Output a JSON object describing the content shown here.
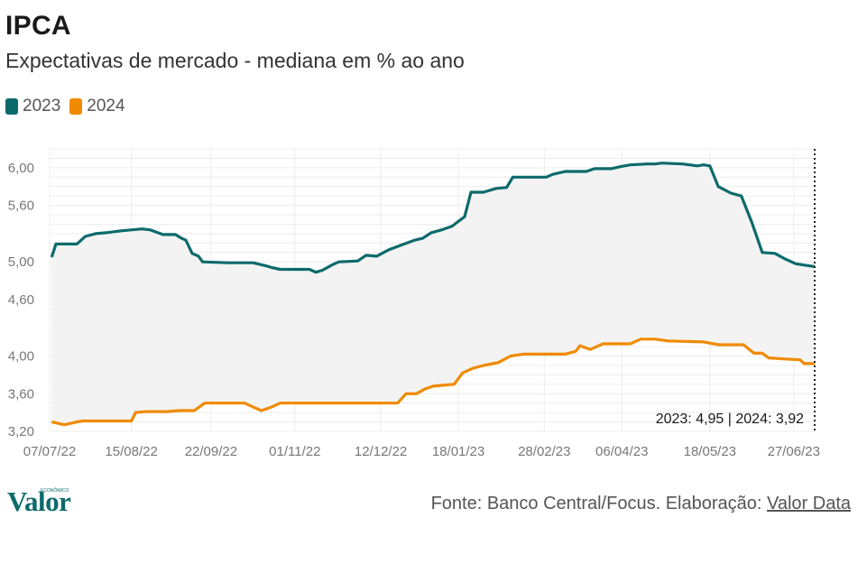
{
  "header": {
    "title": "IPCA",
    "subtitle": "Expectativas de mercado - mediana em % ao ano"
  },
  "legend": [
    {
      "label": "2023",
      "color": "#0d6a6b"
    },
    {
      "label": "2024",
      "color": "#f08a00"
    }
  ],
  "chart_data": {
    "type": "line",
    "x_type": "date",
    "x_range": [
      "2022-07-07",
      "2023-07-07"
    ],
    "ylim": [
      3.2,
      6.2
    ],
    "y_ticks": [
      "6,00",
      "5,60",
      "5,00",
      "4,60",
      "4,00",
      "3,60",
      "3,20"
    ],
    "x_ticks": [
      "07/07/22",
      "15/08/22",
      "22/09/22",
      "01/11/22",
      "12/12/22",
      "18/01/23",
      "28/02/23",
      "06/04/23",
      "18/05/23",
      "27/06/23"
    ],
    "grid": true,
    "legend_position": "top-left",
    "annotation": "2023: 4,95 | 2024: 3,92",
    "series": [
      {
        "name": "2023",
        "color": "#0d6a6b",
        "points": [
          [
            "2022-07-08",
            5.05
          ],
          [
            "2022-07-10",
            5.19
          ],
          [
            "2022-07-20",
            5.19
          ],
          [
            "2022-07-24",
            5.27
          ],
          [
            "2022-07-29",
            5.3
          ],
          [
            "2022-08-03",
            5.31
          ],
          [
            "2022-08-10",
            5.33
          ],
          [
            "2022-08-20",
            5.35
          ],
          [
            "2022-08-24",
            5.34
          ],
          [
            "2022-08-30",
            5.29
          ],
          [
            "2022-09-05",
            5.29
          ],
          [
            "2022-09-08",
            5.25
          ],
          [
            "2022-09-10",
            5.23
          ],
          [
            "2022-09-13",
            5.09
          ],
          [
            "2022-09-16",
            5.06
          ],
          [
            "2022-09-18",
            5.0
          ],
          [
            "2022-09-30",
            4.99
          ],
          [
            "2022-10-12",
            4.99
          ],
          [
            "2022-10-18",
            4.96
          ],
          [
            "2022-10-21",
            4.94
          ],
          [
            "2022-10-25",
            4.92
          ],
          [
            "2022-11-08",
            4.92
          ],
          [
            "2022-11-11",
            4.89
          ],
          [
            "2022-11-14",
            4.91
          ],
          [
            "2022-11-19",
            4.97
          ],
          [
            "2022-11-22",
            5.0
          ],
          [
            "2022-12-01",
            5.01
          ],
          [
            "2022-12-05",
            5.07
          ],
          [
            "2022-12-10",
            5.06
          ],
          [
            "2022-12-16",
            5.13
          ],
          [
            "2022-12-22",
            5.18
          ],
          [
            "2022-12-28",
            5.23
          ],
          [
            "2023-01-01",
            5.25
          ],
          [
            "2023-01-05",
            5.31
          ],
          [
            "2023-01-10",
            5.34
          ],
          [
            "2023-01-15",
            5.38
          ],
          [
            "2023-01-21",
            5.48
          ],
          [
            "2023-01-24",
            5.74
          ],
          [
            "2023-01-30",
            5.74
          ],
          [
            "2023-02-05",
            5.78
          ],
          [
            "2023-02-10",
            5.79
          ],
          [
            "2023-02-13",
            5.9
          ],
          [
            "2023-02-20",
            5.9
          ],
          [
            "2023-03-01",
            5.9
          ],
          [
            "2023-03-04",
            5.93
          ],
          [
            "2023-03-10",
            5.96
          ],
          [
            "2023-03-20",
            5.96
          ],
          [
            "2023-03-24",
            5.99
          ],
          [
            "2023-04-01",
            5.99
          ],
          [
            "2023-04-05",
            6.01
          ],
          [
            "2023-04-10",
            6.03
          ],
          [
            "2023-04-18",
            6.04
          ],
          [
            "2023-04-22",
            6.04
          ],
          [
            "2023-04-25",
            6.05
          ],
          [
            "2023-05-05",
            6.04
          ],
          [
            "2023-05-12",
            6.02
          ],
          [
            "2023-05-15",
            6.03
          ],
          [
            "2023-05-18",
            6.02
          ],
          [
            "2023-05-22",
            5.8
          ],
          [
            "2023-05-28",
            5.73
          ],
          [
            "2023-06-02",
            5.7
          ],
          [
            "2023-06-07",
            5.42
          ],
          [
            "2023-06-12",
            5.1
          ],
          [
            "2023-06-18",
            5.09
          ],
          [
            "2023-06-23",
            5.03
          ],
          [
            "2023-06-28",
            4.98
          ],
          [
            "2023-07-07",
            4.95
          ]
        ]
      },
      {
        "name": "2024",
        "color": "#f08a00",
        "points": [
          [
            "2022-07-08",
            3.3
          ],
          [
            "2022-07-10",
            3.29
          ],
          [
            "2022-07-14",
            3.27
          ],
          [
            "2022-07-20",
            3.3
          ],
          [
            "2022-07-23",
            3.31
          ],
          [
            "2022-08-02",
            3.31
          ],
          [
            "2022-08-15",
            3.31
          ],
          [
            "2022-08-17",
            3.4
          ],
          [
            "2022-08-22",
            3.41
          ],
          [
            "2022-09-01",
            3.41
          ],
          [
            "2022-09-07",
            3.42
          ],
          [
            "2022-09-14",
            3.42
          ],
          [
            "2022-09-19",
            3.5
          ],
          [
            "2022-10-08",
            3.5
          ],
          [
            "2022-10-12",
            3.46
          ],
          [
            "2022-10-16",
            3.42
          ],
          [
            "2022-10-20",
            3.45
          ],
          [
            "2022-10-25",
            3.5
          ],
          [
            "2022-12-01",
            3.5
          ],
          [
            "2022-12-20",
            3.5
          ],
          [
            "2022-12-24",
            3.6
          ],
          [
            "2022-12-29",
            3.6
          ],
          [
            "2023-01-02",
            3.65
          ],
          [
            "2023-01-06",
            3.68
          ],
          [
            "2023-01-16",
            3.7
          ],
          [
            "2023-01-20",
            3.82
          ],
          [
            "2023-01-25",
            3.87
          ],
          [
            "2023-01-30",
            3.9
          ],
          [
            "2023-02-06",
            3.93
          ],
          [
            "2023-02-12",
            4.0
          ],
          [
            "2023-02-18",
            4.02
          ],
          [
            "2023-03-10",
            4.02
          ],
          [
            "2023-03-15",
            4.05
          ],
          [
            "2023-03-17",
            4.11
          ],
          [
            "2023-03-22",
            4.07
          ],
          [
            "2023-03-28",
            4.13
          ],
          [
            "2023-04-10",
            4.13
          ],
          [
            "2023-04-15",
            4.18
          ],
          [
            "2023-04-22",
            4.18
          ],
          [
            "2023-04-28",
            4.16
          ],
          [
            "2023-05-15",
            4.15
          ],
          [
            "2023-05-22",
            4.12
          ],
          [
            "2023-06-03",
            4.12
          ],
          [
            "2023-06-08",
            4.03
          ],
          [
            "2023-06-12",
            4.03
          ],
          [
            "2023-06-15",
            3.98
          ],
          [
            "2023-06-22",
            3.97
          ],
          [
            "2023-06-30",
            3.96
          ],
          [
            "2023-07-02",
            3.92
          ],
          [
            "2023-07-07",
            3.92
          ]
        ]
      }
    ]
  },
  "footer": {
    "logo": "Valor",
    "logo_small": "ECONÔMICO",
    "source_text": "Fonte: Banco Central/Focus. Elaboração: ",
    "source_link": "Valor Data"
  }
}
